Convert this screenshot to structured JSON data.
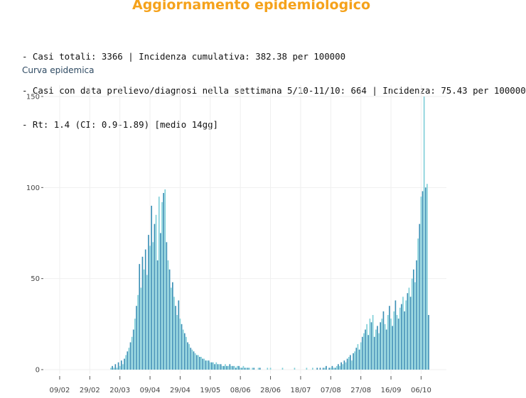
{
  "title": "Aggiornamento epidemiologico",
  "summary": {
    "line1": "- Casi totali: 3366 | Incidenza cumulativa: 382.38 per 100000",
    "line2": "- Casi con data prelievo/diagnosi nella settimana 5/10-11/10: 664 | Incidenza: 75.43 per 100000",
    "line3": "- Rt: 1.4 (CI: 0.9-1.89) [medio 14gg]"
  },
  "subtitle": "Curva epidemica",
  "colors": {
    "title": "#f5a21b",
    "bar_dark": "#3a8fb5",
    "bar_light": "#7fcfd8",
    "grid": "#efefef"
  },
  "chart_data": {
    "type": "bar",
    "start_date": "2020-02-01",
    "end_date": "2020-10-11",
    "ylim": [
      0,
      155
    ],
    "yticks": [
      0,
      50,
      100,
      150
    ],
    "xticks": [
      "09/02",
      "29/02",
      "20/03",
      "09/04",
      "29/04",
      "19/05",
      "08/06",
      "28/06",
      "18/07",
      "07/08",
      "27/08",
      "16/09",
      "06/10"
    ],
    "grid": true,
    "series": [
      {
        "values": [
          0,
          0,
          0,
          0,
          0,
          0,
          0,
          0,
          0,
          0,
          0,
          0,
          0,
          0,
          0,
          0,
          0,
          0,
          0,
          0,
          0,
          0,
          0,
          0,
          0,
          0,
          0,
          0,
          0,
          1,
          2,
          1,
          3,
          1,
          4,
          2,
          5,
          3,
          6,
          8,
          10,
          12,
          15,
          18,
          22,
          28,
          35,
          41,
          58,
          45,
          62,
          55,
          66,
          52,
          74,
          68,
          90,
          70,
          80,
          85,
          60,
          95,
          75,
          92,
          97,
          99,
          70,
          60,
          55,
          45,
          48,
          40,
          35,
          30,
          38,
          28,
          25,
          22,
          20,
          18,
          15,
          14,
          12,
          11,
          10,
          9,
          8,
          8,
          7,
          7,
          6,
          6,
          5,
          5,
          5,
          4,
          4,
          4,
          3,
          4,
          3,
          3,
          3,
          2,
          2,
          3,
          2,
          2,
          3,
          2,
          2,
          2,
          1,
          2,
          2,
          1,
          1,
          2,
          1,
          1,
          1,
          1,
          0,
          1,
          1,
          0,
          0,
          1,
          1,
          0,
          0,
          0,
          0,
          1,
          0,
          1,
          0,
          0,
          0,
          0,
          0,
          0,
          0,
          1,
          0,
          0,
          0,
          0,
          0,
          0,
          0,
          1,
          0,
          0,
          0,
          0,
          0,
          0,
          0,
          1,
          0,
          0,
          0,
          1,
          0,
          0,
          1,
          0,
          1,
          0,
          1,
          1,
          2,
          0,
          1,
          1,
          2,
          1,
          1,
          2,
          3,
          2,
          4,
          3,
          5,
          4,
          6,
          7,
          8,
          5,
          9,
          10,
          12,
          14,
          11,
          15,
          18,
          20,
          22,
          25,
          19,
          28,
          26,
          30,
          18,
          22,
          24,
          20,
          26,
          28,
          32,
          25,
          22,
          30,
          35,
          28,
          24,
          32,
          38,
          30,
          28,
          34,
          36,
          40,
          32,
          38,
          42,
          45,
          40,
          50,
          55,
          48,
          60,
          72,
          80,
          95,
          98,
          150,
          100,
          102,
          30
        ]
      }
    ]
  }
}
